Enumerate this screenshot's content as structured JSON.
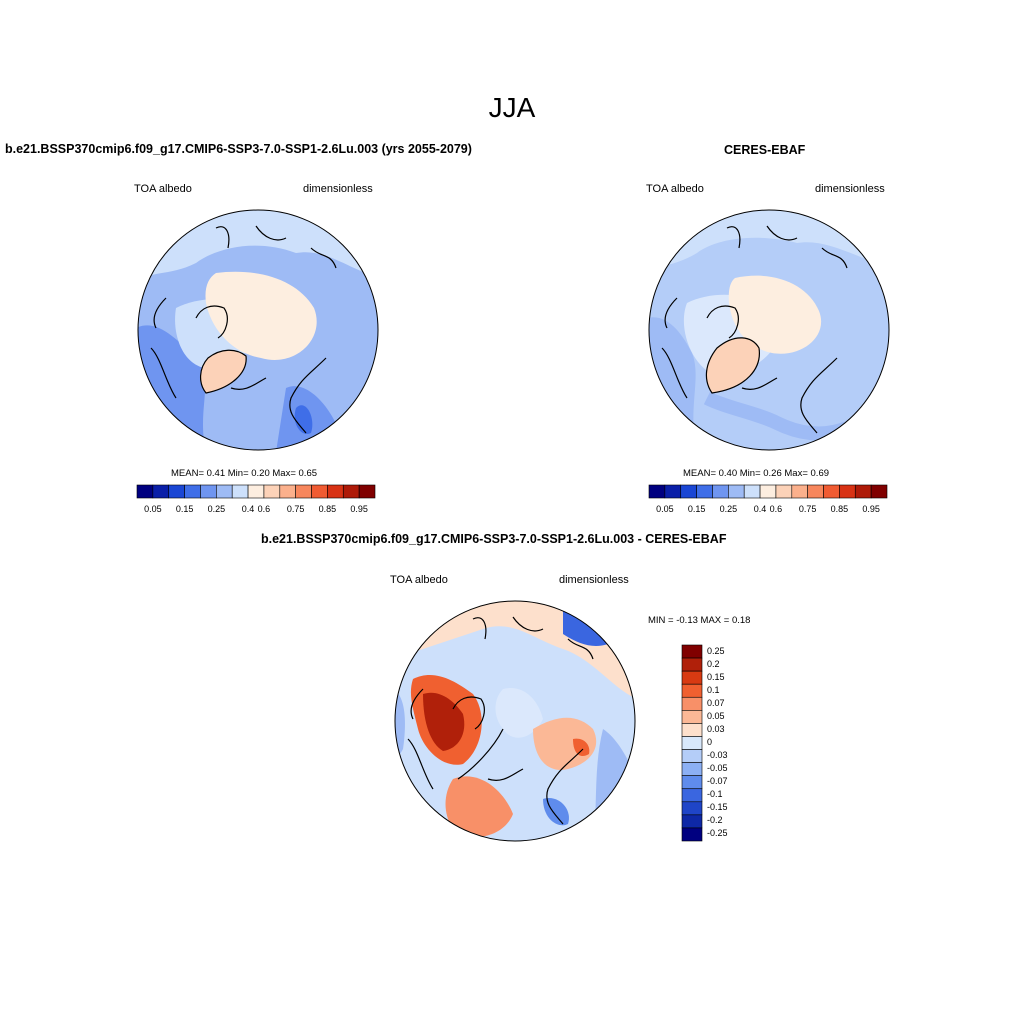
{
  "page": {
    "title": "JJA"
  },
  "panels": {
    "model": {
      "title": "b.e21.BSSP370cmip6.f09_g17.CMIP6-SSP3-7.0-SSP1-2.6Lu.003 (yrs 2055-2079)",
      "variable": "TOA albedo",
      "units": "dimensionless",
      "stats": "MEAN=   0.41  Min=   0.20  Max=   0.65"
    },
    "obs": {
      "title": "CERES-EBAF",
      "variable": "TOA albedo",
      "units": "dimensionless",
      "stats": "MEAN=   0.40  Min=   0.26  Max=   0.69"
    },
    "diff": {
      "title": "b.e21.BSSP370cmip6.f09_g17.CMIP6-SSP3-7.0-SSP1-2.6Lu.003 - CERES-EBAF",
      "variable": "TOA albedo",
      "units": "dimensionless",
      "stats": "MIN =  -0.13 MAX =   0.18"
    }
  },
  "colorbars": {
    "abs": {
      "colors": [
        "#000080",
        "#0a1fa8",
        "#1a46d4",
        "#3f6ee8",
        "#6f95f0",
        "#9ebbf5",
        "#cde0fb",
        "#fdeee0",
        "#fcd2b8",
        "#fbb08c",
        "#f7865c",
        "#f05b32",
        "#d83214",
        "#ae1a08",
        "#800000"
      ],
      "labels": [
        "0.05",
        "0.15",
        "0.25",
        "0.4",
        "0.6",
        "0.75",
        "0.85",
        "0.95"
      ]
    },
    "diff": {
      "colors": [
        "#800000",
        "#b0200a",
        "#d83a12",
        "#f06030",
        "#f89068",
        "#fbb896",
        "#fde0cc",
        "#d8e8fb",
        "#b4cdf8",
        "#8cb0f4",
        "#5f8cec",
        "#3a66e0",
        "#1f45c8",
        "#0e28a6",
        "#000080"
      ],
      "labels": [
        "0.25",
        "0.2",
        "0.15",
        "0.1",
        "0.07",
        "0.05",
        "0.03",
        "0",
        "-0.03",
        "-0.05",
        "-0.07",
        "-0.1",
        "-0.15",
        "-0.2",
        "-0.25"
      ]
    }
  },
  "chart_data": [
    {
      "type": "heatmap",
      "title": "b.e21.BSSP370cmip6.f09_g17.CMIP6-SSP3-7.0-SSP1-2.6Lu.003 (yrs 2055-2079)",
      "projection": "north polar stereographic",
      "variable": "TOA albedo",
      "units": "dimensionless",
      "mean": 0.41,
      "min": 0.2,
      "max": 0.65,
      "levels": [
        0.05,
        0.1,
        0.15,
        0.2,
        0.25,
        0.3,
        0.35,
        0.4,
        0.5,
        0.6,
        0.65,
        0.75,
        0.8,
        0.85,
        0.9,
        0.95
      ]
    },
    {
      "type": "heatmap",
      "title": "CERES-EBAF",
      "projection": "north polar stereographic",
      "variable": "TOA albedo",
      "units": "dimensionless",
      "mean": 0.4,
      "min": 0.26,
      "max": 0.69,
      "levels": [
        0.05,
        0.1,
        0.15,
        0.2,
        0.25,
        0.3,
        0.35,
        0.4,
        0.5,
        0.6,
        0.65,
        0.75,
        0.8,
        0.85,
        0.9,
        0.95
      ]
    },
    {
      "type": "heatmap",
      "title": "b.e21.BSSP370cmip6.f09_g17.CMIP6-SSP3-7.0-SSP1-2.6Lu.003 - CERES-EBAF",
      "projection": "north polar stereographic",
      "variable": "TOA albedo",
      "units": "dimensionless",
      "min": -0.13,
      "max": 0.18,
      "levels": [
        0.25,
        0.2,
        0.15,
        0.1,
        0.07,
        0.05,
        0.03,
        0,
        -0.03,
        -0.05,
        -0.07,
        -0.1,
        -0.15,
        -0.2,
        -0.25
      ]
    }
  ]
}
